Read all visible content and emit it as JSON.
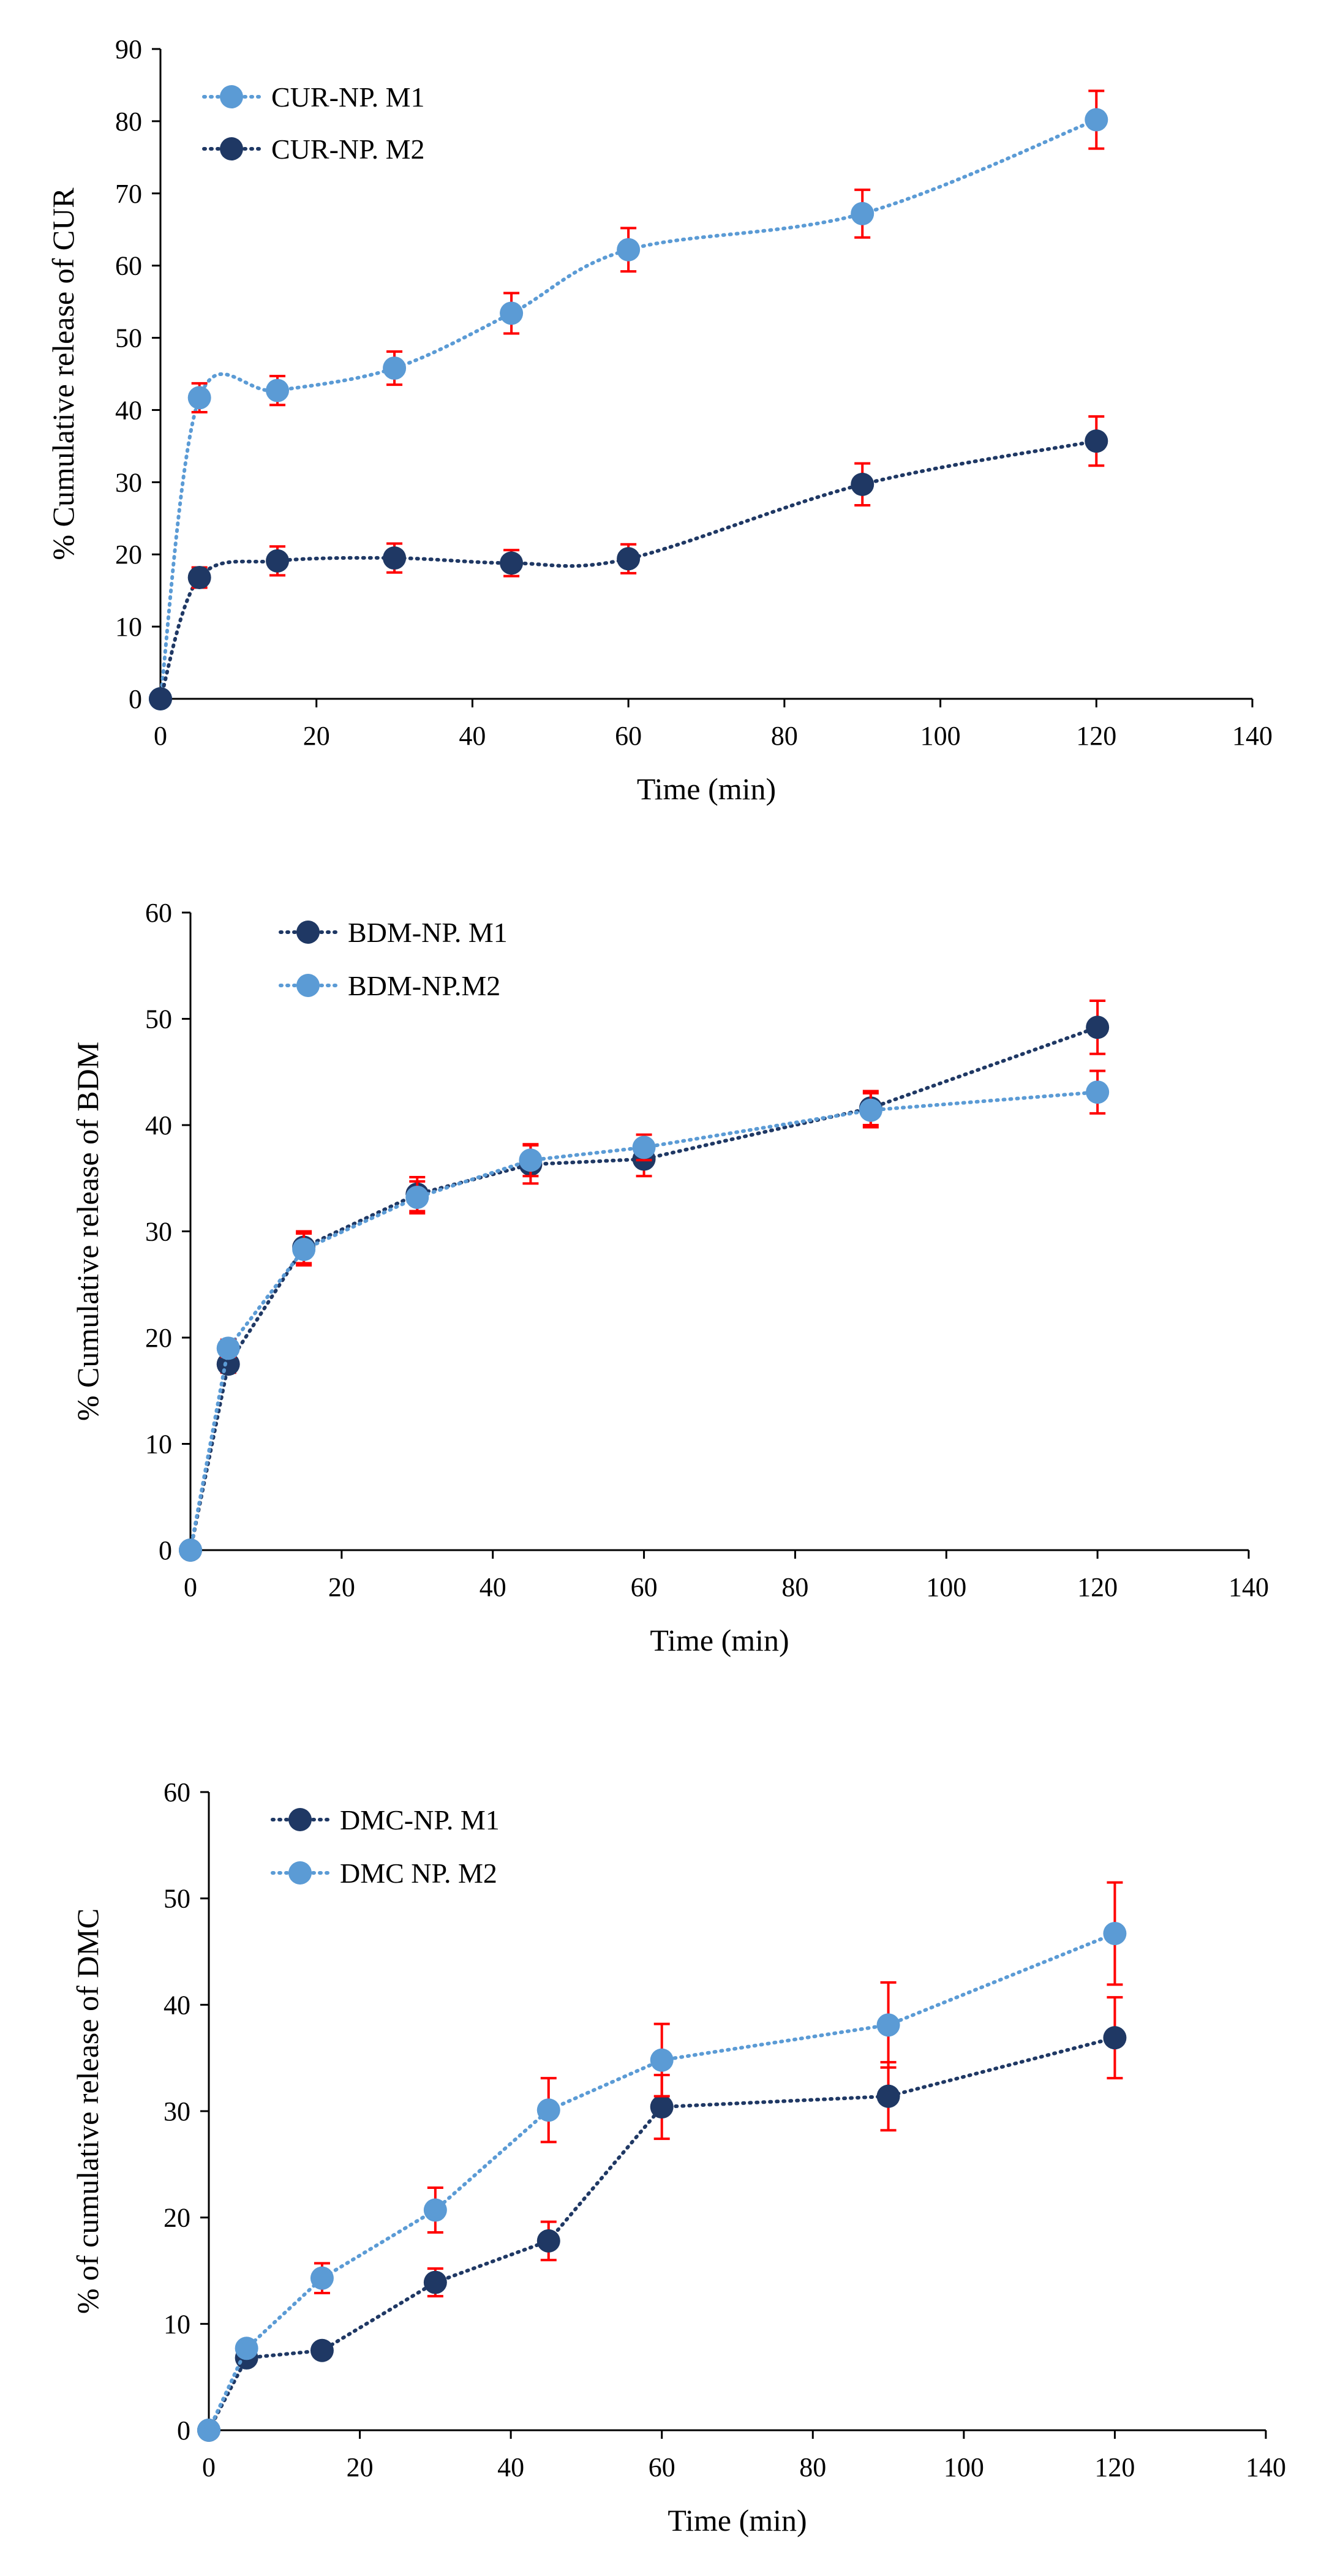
{
  "colors": {
    "light_series": "#5b9bd5",
    "dark_series": "#1f3864",
    "error_bars": "#ff0000",
    "axes": "#000000"
  },
  "chart_data": [
    {
      "type": "line",
      "title": "",
      "xlabel": "Time (min)",
      "ylabel": "% Cumulative release of CUR",
      "xlim": [
        0,
        140
      ],
      "ylim": [
        0,
        90
      ],
      "xticks": [
        0,
        20,
        40,
        60,
        80,
        100,
        120,
        140
      ],
      "yticks": [
        0,
        10,
        20,
        30,
        40,
        50,
        60,
        70,
        80,
        90
      ],
      "legend_position": "top-left",
      "series": [
        {
          "name": "CUR-NP. M1",
          "color": "#5b9bd5",
          "x": [
            0,
            5,
            15,
            30,
            45,
            60,
            90,
            120
          ],
          "y": [
            0,
            41.7,
            42.7,
            45.8,
            53.4,
            62.2,
            67.2,
            80.2
          ],
          "err": [
            0,
            2.0,
            2.0,
            2.3,
            2.8,
            3.0,
            3.3,
            4.0
          ]
        },
        {
          "name": "CUR-NP. M2",
          "color": "#1f3864",
          "x": [
            0,
            5,
            15,
            30,
            45,
            60,
            90,
            120
          ],
          "y": [
            0,
            16.8,
            19.1,
            19.5,
            18.8,
            19.4,
            29.7,
            35.7
          ],
          "err": [
            0,
            1.4,
            2.0,
            2.0,
            1.8,
            2.0,
            2.9,
            3.4
          ]
        }
      ]
    },
    {
      "type": "line",
      "title": "",
      "xlabel": "Time (min)",
      "ylabel": "%  Cumulative release of  BDM",
      "xlim": [
        0,
        140
      ],
      "ylim": [
        0,
        60
      ],
      "xticks": [
        0,
        20,
        40,
        60,
        80,
        100,
        120,
        140
      ],
      "yticks": [
        0,
        10,
        20,
        30,
        40,
        50,
        60
      ],
      "legend_position": "top-left",
      "series": [
        {
          "name": "BDM-NP. M1",
          "color": "#1f3864",
          "x": [
            0,
            5,
            15,
            30,
            45,
            60,
            90,
            120
          ],
          "y": [
            0,
            17.5,
            28.5,
            33.5,
            36.3,
            36.8,
            41.6,
            49.2
          ],
          "err": [
            0,
            0.8,
            1.5,
            1.6,
            1.8,
            1.6,
            1.6,
            2.5
          ]
        },
        {
          "name": "BDM-NP.M2",
          "color": "#5b9bd5",
          "x": [
            0,
            5,
            15,
            30,
            45,
            60,
            90,
            120
          ],
          "y": [
            0,
            19.0,
            28.3,
            33.2,
            36.7,
            37.9,
            41.4,
            43.1
          ],
          "err": [
            0,
            0.8,
            1.5,
            1.5,
            1.5,
            1.2,
            1.6,
            2.0
          ]
        }
      ]
    },
    {
      "type": "line",
      "title": "",
      "xlabel": "Time (min)",
      "ylabel": "% of cumulative release of DMC",
      "xlim": [
        0,
        140
      ],
      "ylim": [
        0,
        60
      ],
      "xticks": [
        0,
        20,
        40,
        60,
        80,
        100,
        120,
        140
      ],
      "yticks": [
        0,
        10,
        20,
        30,
        40,
        50,
        60
      ],
      "legend_position": "top-left",
      "series": [
        {
          "name": "DMC-NP. M1",
          "color": "#1f3864",
          "x": [
            0,
            5,
            15,
            30,
            45,
            60,
            90,
            120
          ],
          "y": [
            0,
            6.8,
            7.5,
            13.9,
            17.8,
            30.4,
            31.4,
            36.9
          ],
          "err": [
            0,
            0.6,
            0.6,
            1.3,
            1.8,
            3.0,
            3.2,
            3.8
          ]
        },
        {
          "name": "DMC NP. M2",
          "color": "#5b9bd5",
          "x": [
            0,
            5,
            15,
            30,
            45,
            60,
            90,
            120
          ],
          "y": [
            0,
            7.7,
            14.3,
            20.7,
            30.1,
            34.8,
            38.1,
            46.7
          ],
          "err": [
            0,
            0.6,
            1.4,
            2.1,
            3.0,
            3.4,
            4.0,
            4.8
          ]
        }
      ]
    }
  ]
}
